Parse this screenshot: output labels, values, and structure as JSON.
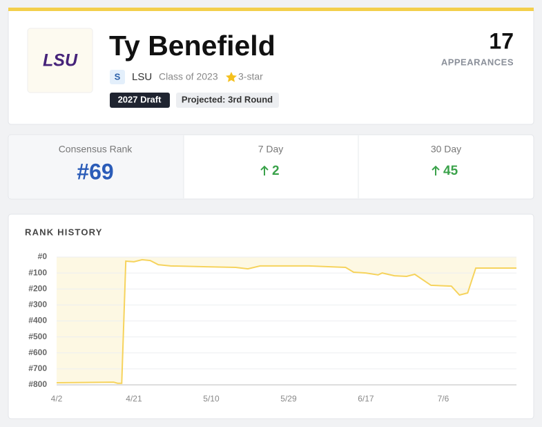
{
  "header": {
    "logo": "LSU",
    "name": "Ty Benefield",
    "position": "S",
    "school": "LSU",
    "class": "Class of 2023",
    "stars": "3-star",
    "draft": "2027 Draft",
    "projected": "Projected: 3rd Round",
    "appearances": 17,
    "appearances_label": "APPEARANCES"
  },
  "stats": [
    {
      "label": "Consensus Rank",
      "value": "#69"
    },
    {
      "label": "7 Day",
      "value": 2
    },
    {
      "label": "30 Day",
      "value": 45
    }
  ],
  "chart_data": {
    "type": "line",
    "title": "RANK HISTORY",
    "x": [
      "4/2",
      "4/16",
      "4/17",
      "4/18",
      "4/19",
      "4/21",
      "4/23",
      "4/25",
      "4/27",
      "4/30",
      "5/9",
      "5/16",
      "5/19",
      "5/22",
      "6/3",
      "6/12",
      "6/14",
      "6/17",
      "6/20",
      "6/21",
      "6/24",
      "6/27",
      "6/29",
      "7/3",
      "7/8",
      "7/10",
      "7/12",
      "7/14",
      "7/18",
      "7/24"
    ],
    "values": [
      787,
      783,
      790,
      790,
      26,
      30,
      17,
      22,
      48,
      56,
      61,
      65,
      74,
      56,
      56,
      65,
      95,
      100,
      112,
      100,
      117,
      121,
      108,
      177,
      182,
      238,
      225,
      69,
      69,
      69
    ],
    "color": "#f6d35c",
    "area_color": "#fdf8e3",
    "xlim": [
      "4/2",
      "7/24"
    ],
    "xticks": [
      "4/2",
      "4/21",
      "5/10",
      "5/29",
      "6/17",
      "7/6"
    ],
    "ylim": [
      800,
      0
    ],
    "yticks": [
      {
        "value": 0,
        "label": "#0"
      },
      {
        "value": 100,
        "label": "#100"
      },
      {
        "value": 200,
        "label": "#200"
      },
      {
        "value": 300,
        "label": "#300"
      },
      {
        "value": 400,
        "label": "#400"
      },
      {
        "value": 500,
        "label": "#500"
      },
      {
        "value": 600,
        "label": "#600"
      },
      {
        "value": 700,
        "label": "#700"
      },
      {
        "value": 800,
        "label": "#800"
      }
    ],
    "grid": true
  }
}
